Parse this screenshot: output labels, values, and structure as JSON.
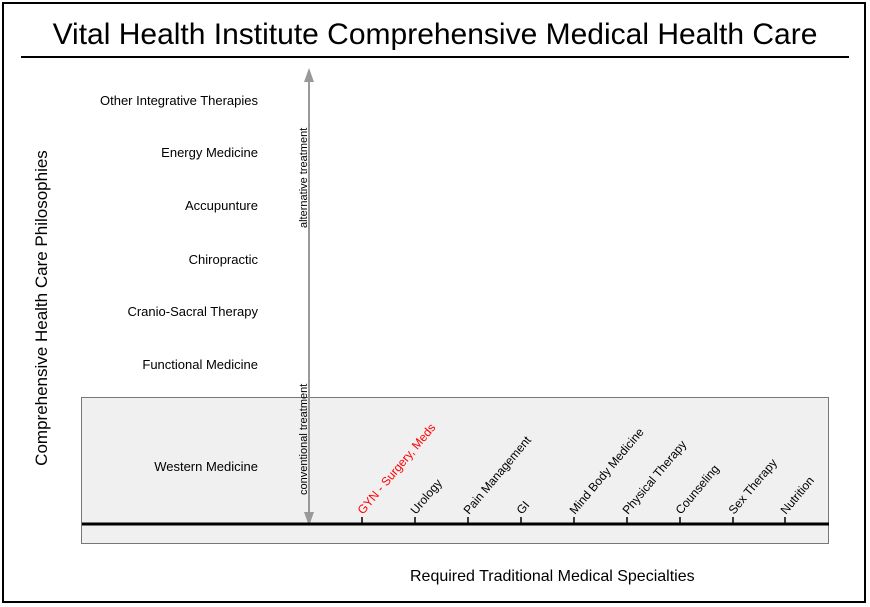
{
  "title": "Vital Health Institute Comprehensive Medical Health Care",
  "y_axis_label": "Comprehensive Health Care Philosophies",
  "x_axis_label": "Required Traditional Medical Specialties",
  "philosophies": [
    "Other Integrative Therapies",
    "Energy Medicine",
    "Accupunture",
    "Chiropractic",
    "Cranio-Sacral Therapy",
    "Functional Medicine",
    "Western Medicine"
  ],
  "arrow_labels": {
    "up": "alternative treatment",
    "down": "conventional treatment"
  },
  "specialties": [
    {
      "label": "GYN - Surgery, Meds",
      "highlight": true
    },
    {
      "label": "Urology",
      "highlight": false
    },
    {
      "label": "Pain Management",
      "highlight": false
    },
    {
      "label": "GI",
      "highlight": false
    },
    {
      "label": "Mind Body Medicine",
      "highlight": false
    },
    {
      "label": "Physical Therapy",
      "highlight": false
    },
    {
      "label": "Counseling",
      "highlight": false
    },
    {
      "label": "Sex Therapy",
      "highlight": false
    },
    {
      "label": "Nutrition",
      "highlight": false
    }
  ],
  "colors": {
    "highlight": "#ff0000",
    "text": "#000000",
    "arrow": "#999999",
    "band": "#f0f0f0"
  }
}
